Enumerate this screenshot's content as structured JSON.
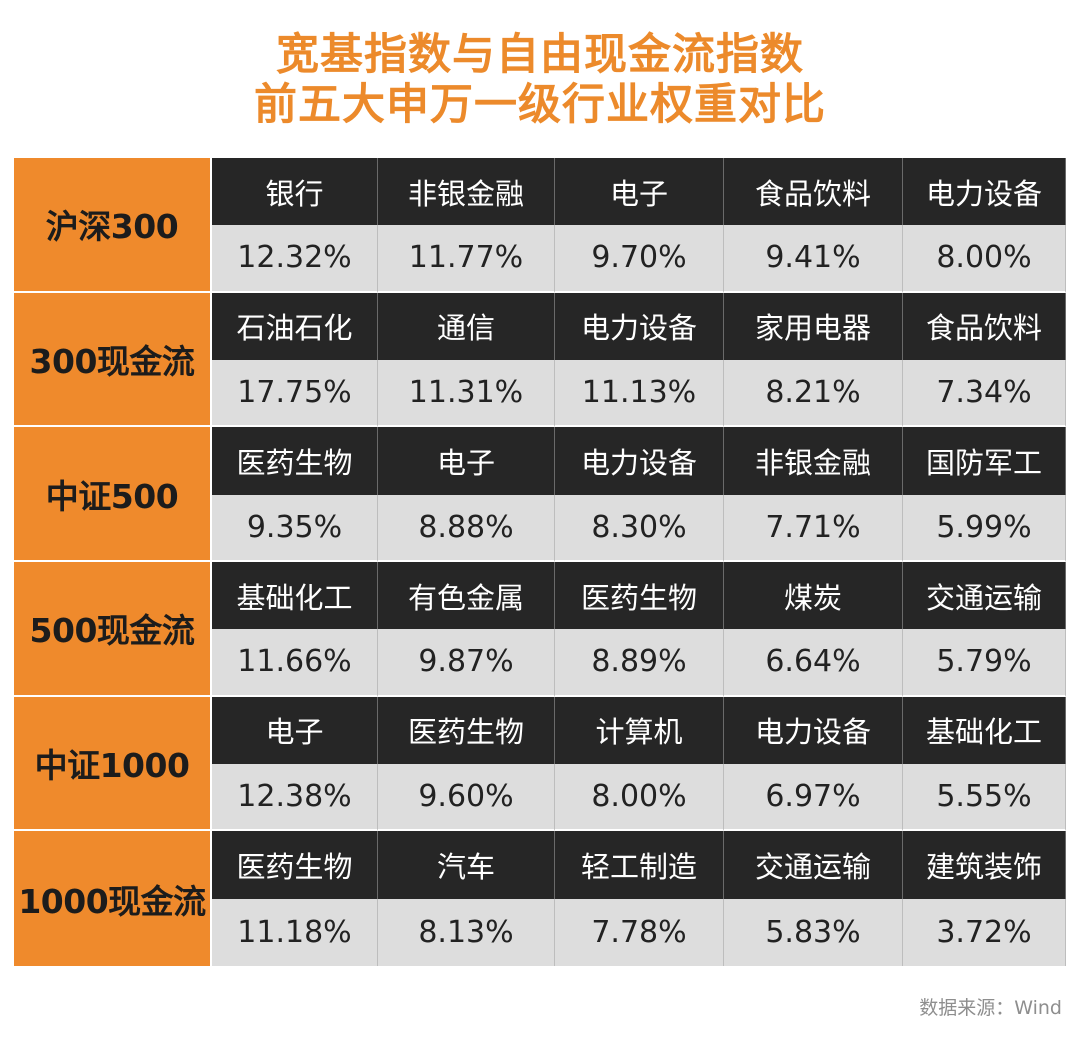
{
  "title": {
    "line1": "宽基指数与自由现金流指数",
    "line2": "前五大申万一级行业权重对比"
  },
  "source": "数据来源：Wind",
  "colors": {
    "title": "#EC8A2B",
    "label_bg": "#EF8A2C",
    "industry_bg": "#262626",
    "percent_bg": "#DDDDDD"
  },
  "chart_data": {
    "type": "table",
    "title": "宽基指数与自由现金流指数 前五大申万一级行业权重对比",
    "rows": [
      {
        "index": "沪深300",
        "industries": [
          "银行",
          "非银金融",
          "电子",
          "食品饮料",
          "电力设备"
        ],
        "weights": [
          "12.32%",
          "11.77%",
          "9.70%",
          "9.41%",
          "8.00%"
        ]
      },
      {
        "index": "300现金流",
        "industries": [
          "石油石化",
          "通信",
          "电力设备",
          "家用电器",
          "食品饮料"
        ],
        "weights": [
          "17.75%",
          "11.31%",
          "11.13%",
          "8.21%",
          "7.34%"
        ]
      },
      {
        "index": "中证500",
        "industries": [
          "医药生物",
          "电子",
          "电力设备",
          "非银金融",
          "国防军工"
        ],
        "weights": [
          "9.35%",
          "8.88%",
          "8.30%",
          "7.71%",
          "5.99%"
        ]
      },
      {
        "index": "500现金流",
        "industries": [
          "基础化工",
          "有色金属",
          "医药生物",
          "煤炭",
          "交通运输"
        ],
        "weights": [
          "11.66%",
          "9.87%",
          "8.89%",
          "6.64%",
          "5.79%"
        ]
      },
      {
        "index": "中证1000",
        "industries": [
          "电子",
          "医药生物",
          "计算机",
          "电力设备",
          "基础化工"
        ],
        "weights": [
          "12.38%",
          "9.60%",
          "8.00%",
          "6.97%",
          "5.55%"
        ]
      },
      {
        "index": "1000现金流",
        "industries": [
          "医药生物",
          "汽车",
          "轻工制造",
          "交通运输",
          "建筑装饰"
        ],
        "weights": [
          "11.18%",
          "8.13%",
          "7.78%",
          "5.83%",
          "3.72%"
        ]
      }
    ]
  }
}
